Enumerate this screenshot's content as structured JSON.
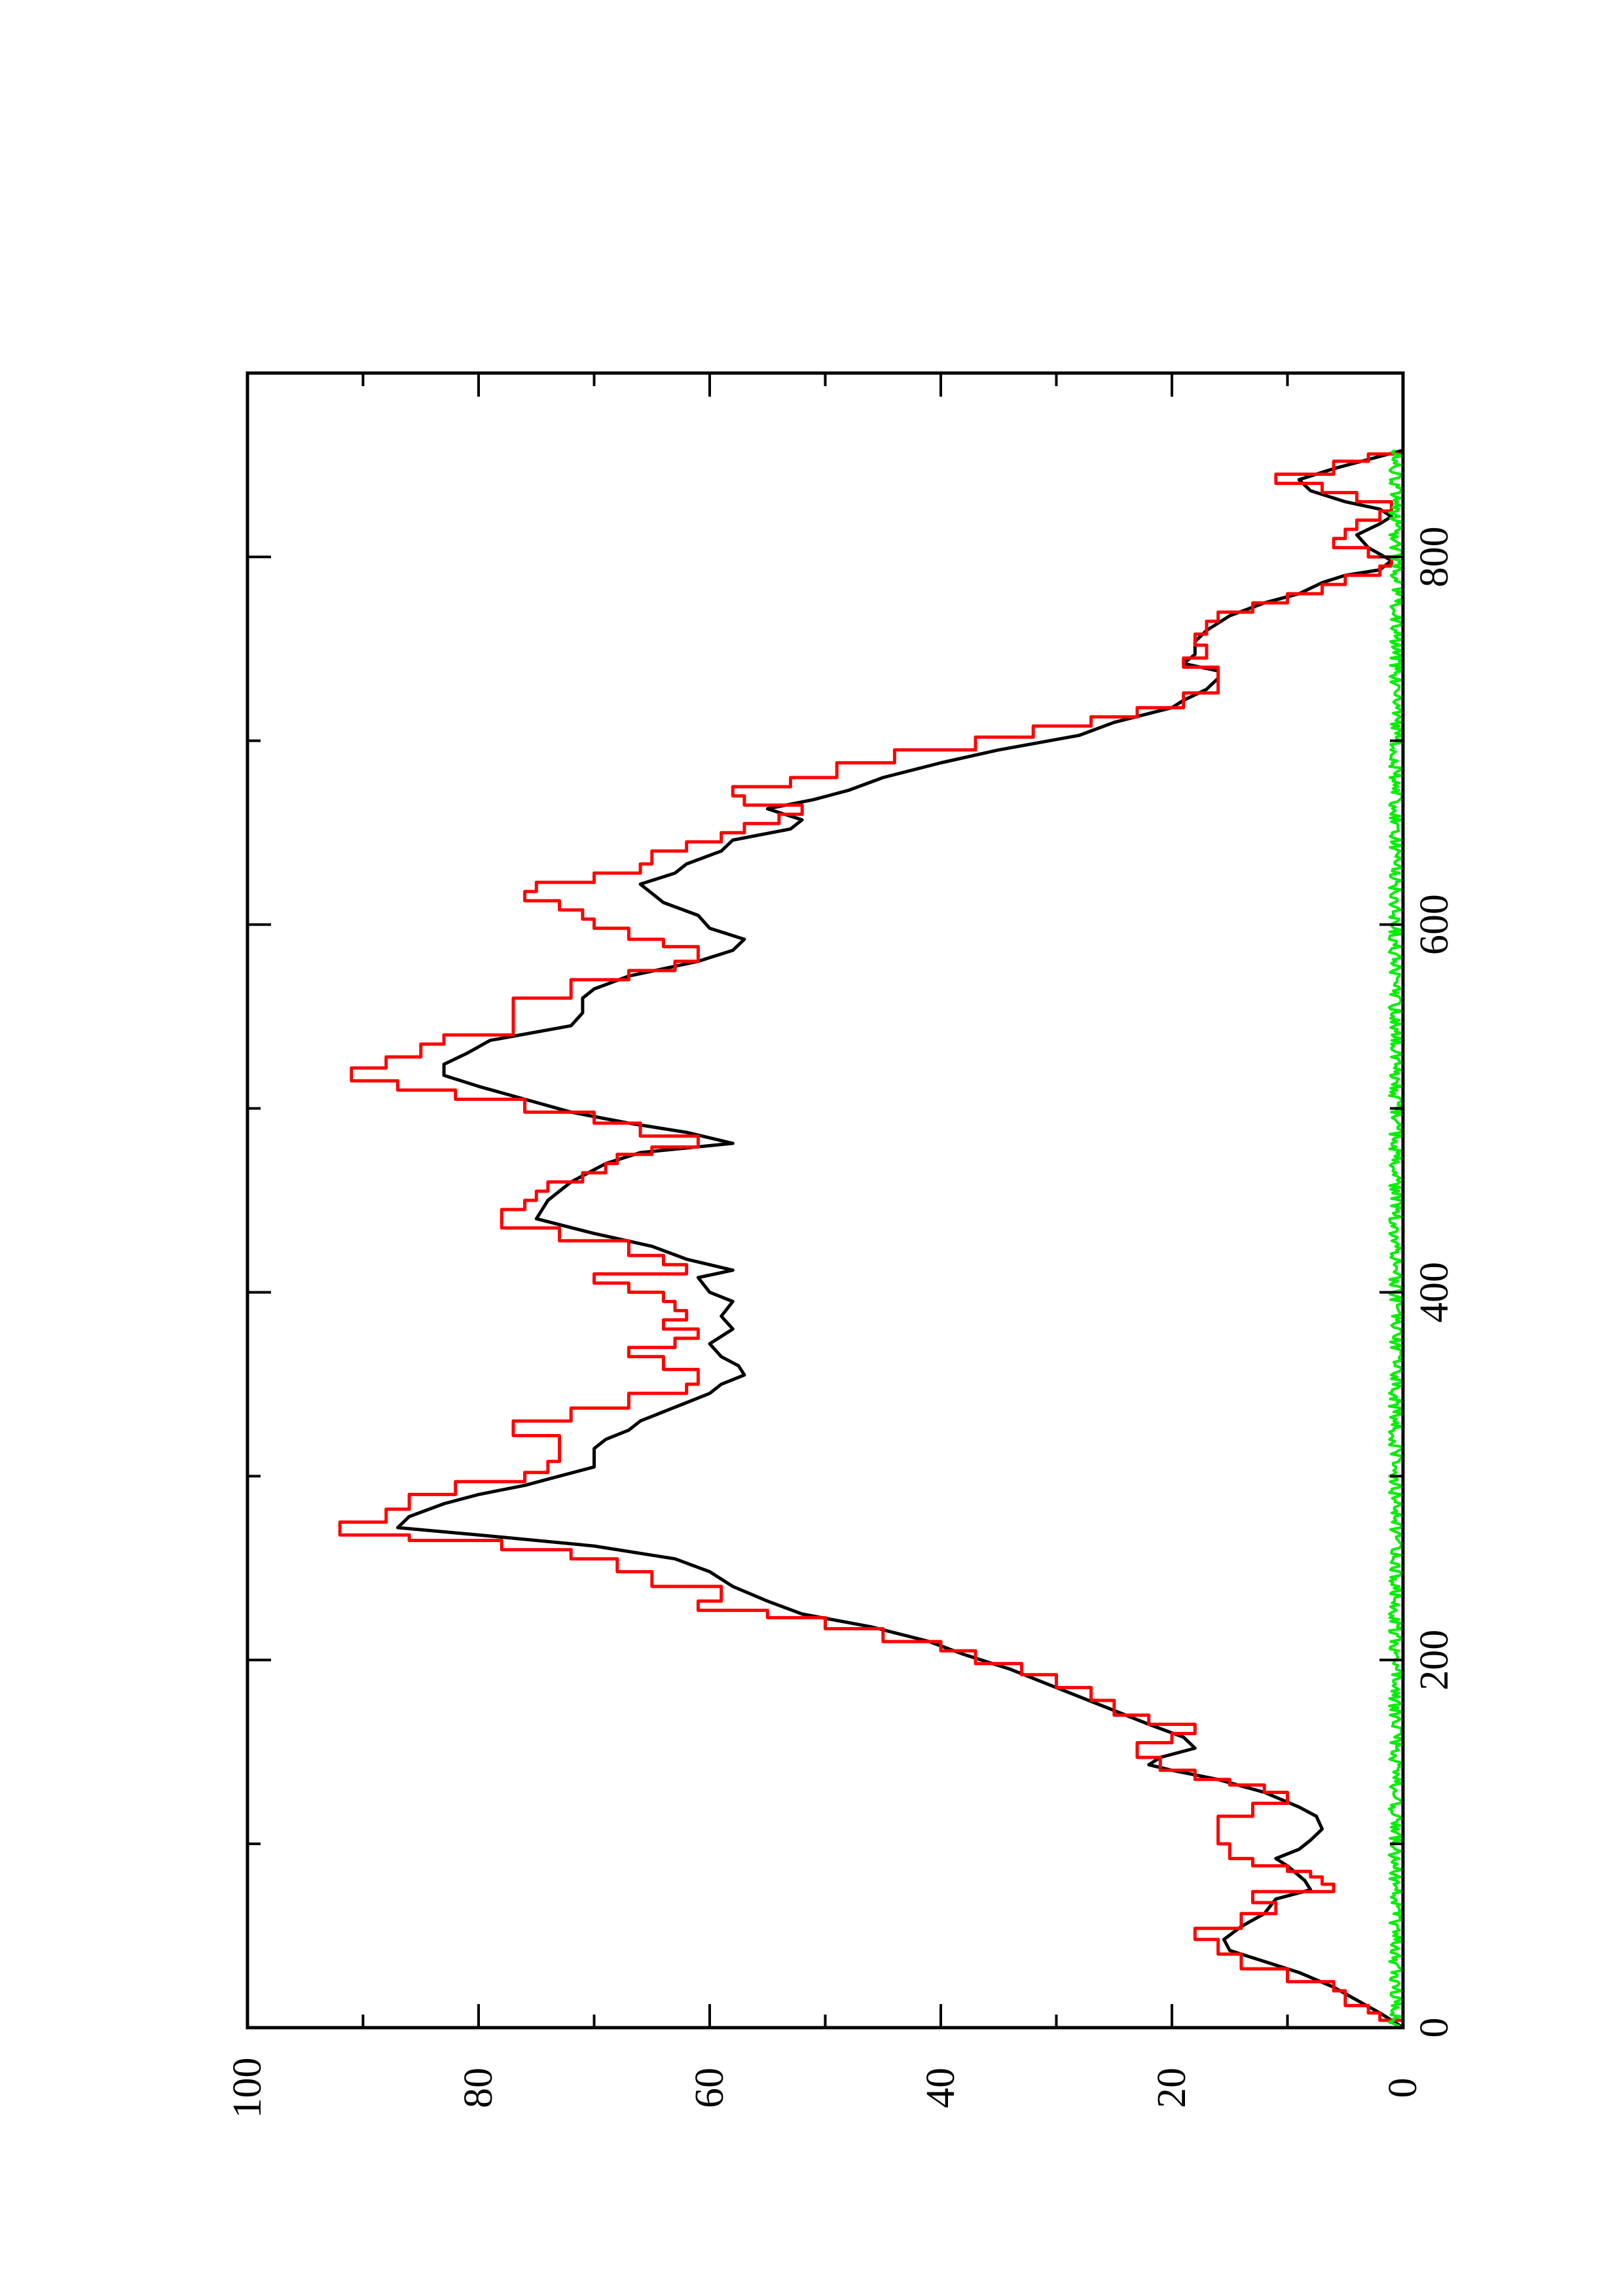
{
  "chart_data": {
    "type": "line",
    "orientation": "rotated-90-ccw",
    "title": "",
    "xlabel": "",
    "ylabel": "",
    "xlim": [
      0,
      900
    ],
    "ylim": [
      0,
      100
    ],
    "x_ticks": [
      0,
      200,
      400,
      600,
      800
    ],
    "x_tick_labels": [
      "0",
      "200",
      "400",
      "600",
      "800"
    ],
    "x_minor_ticks": [
      100,
      300,
      500,
      700
    ],
    "y_ticks": [
      0,
      20,
      40,
      60,
      80,
      100
    ],
    "y_tick_labels": [
      "0",
      "20",
      "40",
      "60",
      "80",
      "100"
    ],
    "y_minor_ticks": [
      10,
      30,
      50,
      70,
      90
    ],
    "grid": false,
    "legend": "none",
    "series": [
      {
        "color": "#000000",
        "step": false,
        "points": [
          [
            0,
            0
          ],
          [
            8,
            2
          ],
          [
            15,
            4
          ],
          [
            22,
            6
          ],
          [
            30,
            9
          ],
          [
            38,
            13
          ],
          [
            42,
            15
          ],
          [
            48,
            15.5
          ],
          [
            55,
            14
          ],
          [
            62,
            12
          ],
          [
            70,
            11
          ],
          [
            75,
            8
          ],
          [
            80,
            8.5
          ],
          [
            88,
            10
          ],
          [
            92,
            11
          ],
          [
            97,
            9
          ],
          [
            102,
            8
          ],
          [
            108,
            7
          ],
          [
            115,
            7.5
          ],
          [
            120,
            9
          ],
          [
            128,
            12
          ],
          [
            135,
            16
          ],
          [
            140,
            20
          ],
          [
            143,
            22
          ],
          [
            147,
            21
          ],
          [
            152,
            18
          ],
          [
            158,
            19
          ],
          [
            165,
            22
          ],
          [
            175,
            26
          ],
          [
            185,
            30
          ],
          [
            195,
            34
          ],
          [
            203,
            38
          ],
          [
            210,
            41
          ],
          [
            218,
            46
          ],
          [
            225,
            52
          ],
          [
            232,
            55
          ],
          [
            240,
            58
          ],
          [
            248,
            60
          ],
          [
            255,
            63
          ],
          [
            262,
            70
          ],
          [
            268,
            80
          ],
          [
            272,
            87
          ],
          [
            278,
            86
          ],
          [
            285,
            83
          ],
          [
            290,
            80
          ],
          [
            295,
            76
          ],
          [
            300,
            73
          ],
          [
            305,
            70
          ],
          [
            310,
            70
          ],
          [
            315,
            70
          ],
          [
            320,
            69
          ],
          [
            325,
            67
          ],
          [
            330,
            66
          ],
          [
            335,
            64
          ],
          [
            340,
            62
          ],
          [
            345,
            60
          ],
          [
            350,
            59
          ],
          [
            355,
            57
          ],
          [
            360,
            57.5
          ],
          [
            365,
            59
          ],
          [
            372,
            60
          ],
          [
            380,
            58
          ],
          [
            387,
            59
          ],
          [
            395,
            58
          ],
          [
            400,
            60
          ],
          [
            408,
            61
          ],
          [
            412,
            58
          ],
          [
            418,
            62
          ],
          [
            425,
            65
          ],
          [
            432,
            70
          ],
          [
            440,
            75
          ],
          [
            450,
            74
          ],
          [
            460,
            72
          ],
          [
            470,
            69
          ],
          [
            476,
            66
          ],
          [
            481,
            58
          ],
          [
            487,
            62
          ],
          [
            492,
            67
          ],
          [
            498,
            72
          ],
          [
            505,
            76
          ],
          [
            512,
            80
          ],
          [
            518,
            83
          ],
          [
            524,
            83
          ],
          [
            530,
            81
          ],
          [
            537,
            79
          ],
          [
            545,
            72
          ],
          [
            552,
            71
          ],
          [
            560,
            71
          ],
          [
            565,
            70
          ],
          [
            572,
            67
          ],
          [
            580,
            61
          ],
          [
            586,
            58
          ],
          [
            592,
            57
          ],
          [
            598,
            60
          ],
          [
            605,
            61
          ],
          [
            612,
            64
          ],
          [
            617,
            65
          ],
          [
            622,
            66
          ],
          [
            628,
            63
          ],
          [
            633,
            62
          ],
          [
            640,
            59
          ],
          [
            646,
            58
          ],
          [
            652,
            53
          ],
          [
            657,
            52
          ],
          [
            663,
            55
          ],
          [
            668,
            51
          ],
          [
            673,
            48
          ],
          [
            680,
            45
          ],
          [
            688,
            40
          ],
          [
            695,
            35
          ],
          [
            703,
            28
          ],
          [
            710,
            25
          ],
          [
            718,
            20
          ],
          [
            722,
            19
          ],
          [
            728,
            17
          ],
          [
            734,
            16
          ],
          [
            738,
            16
          ],
          [
            742,
            19
          ],
          [
            747,
            18
          ],
          [
            754,
            18
          ],
          [
            760,
            17
          ],
          [
            768,
            15
          ],
          [
            775,
            12
          ],
          [
            780,
            9
          ],
          [
            786,
            7
          ],
          [
            790,
            5
          ],
          [
            793,
            2
          ],
          [
            798,
            1
          ],
          [
            805,
            3
          ],
          [
            812,
            4
          ],
          [
            818,
            2
          ],
          [
            822,
            1
          ],
          [
            826,
            2
          ],
          [
            830,
            5
          ],
          [
            836,
            8
          ],
          [
            842,
            9
          ],
          [
            848,
            6
          ],
          [
            853,
            3
          ],
          [
            858,
            0
          ]
        ]
      },
      {
        "color": "#ff0000",
        "step": true,
        "points": [
          [
            0,
            0
          ],
          [
            4,
            2
          ],
          [
            8,
            3
          ],
          [
            12,
            5
          ],
          [
            20,
            6
          ],
          [
            25,
            10
          ],
          [
            32,
            14
          ],
          [
            40,
            16
          ],
          [
            48,
            18
          ],
          [
            54,
            14
          ],
          [
            62,
            11
          ],
          [
            68,
            13
          ],
          [
            74,
            6
          ],
          [
            78,
            7
          ],
          [
            82,
            8
          ],
          [
            85,
            10
          ],
          [
            88,
            13
          ],
          [
            92,
            15
          ],
          [
            100,
            16
          ],
          [
            108,
            16
          ],
          [
            115,
            13
          ],
          [
            122,
            10
          ],
          [
            128,
            12
          ],
          [
            132,
            15
          ],
          [
            135,
            18
          ],
          [
            140,
            21
          ],
          [
            147,
            23
          ],
          [
            155,
            20
          ],
          [
            160,
            18
          ],
          [
            165,
            22
          ],
          [
            170,
            25
          ],
          [
            178,
            27
          ],
          [
            185,
            30
          ],
          [
            192,
            33
          ],
          [
            198,
            37
          ],
          [
            205,
            40
          ],
          [
            210,
            45
          ],
          [
            217,
            50
          ],
          [
            223,
            55
          ],
          [
            227,
            61
          ],
          [
            232,
            59
          ],
          [
            240,
            65
          ],
          [
            248,
            68
          ],
          [
            255,
            72
          ],
          [
            260,
            78
          ],
          [
            265,
            86
          ],
          [
            268,
            92
          ],
          [
            275,
            88
          ],
          [
            282,
            86
          ],
          [
            290,
            82
          ],
          [
            297,
            76
          ],
          [
            302,
            74
          ],
          [
            308,
            73
          ],
          [
            315,
            73
          ],
          [
            322,
            77
          ],
          [
            330,
            72
          ],
          [
            337,
            67
          ],
          [
            345,
            62
          ],
          [
            350,
            61
          ],
          [
            358,
            64
          ],
          [
            365,
            67
          ],
          [
            370,
            63
          ],
          [
            375,
            61
          ],
          [
            380,
            64
          ],
          [
            385,
            62
          ],
          [
            390,
            63
          ],
          [
            395,
            64
          ],
          [
            400,
            67
          ],
          [
            405,
            70
          ],
          [
            410,
            62
          ],
          [
            415,
            64
          ],
          [
            420,
            67
          ],
          [
            428,
            73
          ],
          [
            435,
            78
          ],
          [
            440,
            78
          ],
          [
            445,
            76
          ],
          [
            450,
            75
          ],
          [
            455,
            74
          ],
          [
            460,
            71
          ],
          [
            465,
            69
          ],
          [
            470,
            68
          ],
          [
            475,
            65
          ],
          [
            479,
            61
          ],
          [
            485,
            66
          ],
          [
            492,
            70
          ],
          [
            498,
            76
          ],
          [
            505,
            82
          ],
          [
            510,
            87
          ],
          [
            515,
            91
          ],
          [
            522,
            88
          ],
          [
            528,
            85
          ],
          [
            535,
            83
          ],
          [
            540,
            77
          ],
          [
            552,
            77
          ],
          [
            560,
            72
          ],
          [
            570,
            67
          ],
          [
            575,
            63
          ],
          [
            580,
            61
          ],
          [
            588,
            64
          ],
          [
            592,
            67
          ],
          [
            598,
            70
          ],
          [
            603,
            71
          ],
          [
            608,
            73
          ],
          [
            613,
            76
          ],
          [
            618,
            75
          ],
          [
            623,
            70
          ],
          [
            628,
            66
          ],
          [
            633,
            65
          ],
          [
            640,
            62
          ],
          [
            645,
            59
          ],
          [
            650,
            57
          ],
          [
            655,
            54
          ],
          [
            660,
            52
          ],
          [
            665,
            57
          ],
          [
            670,
            58
          ],
          [
            675,
            53
          ],
          [
            680,
            49
          ],
          [
            688,
            44
          ],
          [
            695,
            37
          ],
          [
            702,
            32
          ],
          [
            708,
            27
          ],
          [
            713,
            23
          ],
          [
            718,
            19
          ],
          [
            726,
            16
          ],
          [
            733,
            16
          ],
          [
            740,
            19
          ],
          [
            745,
            17
          ],
          [
            752,
            18
          ],
          [
            758,
            17
          ],
          [
            765,
            16
          ],
          [
            770,
            13
          ],
          [
            775,
            10
          ],
          [
            780,
            7
          ],
          [
            785,
            5
          ],
          [
            790,
            2
          ],
          [
            795,
            1
          ],
          [
            800,
            3
          ],
          [
            805,
            6
          ],
          [
            810,
            5
          ],
          [
            815,
            4
          ],
          [
            820,
            2
          ],
          [
            825,
            1
          ],
          [
            830,
            4
          ],
          [
            835,
            7
          ],
          [
            840,
            11
          ],
          [
            845,
            6
          ],
          [
            852,
            3
          ],
          [
            856,
            0
          ]
        ]
      },
      {
        "color": "#00ee00",
        "step": false,
        "noise": true,
        "x_range": [
          0,
          858
        ],
        "level": 0,
        "amplitude": 1.2
      }
    ]
  }
}
